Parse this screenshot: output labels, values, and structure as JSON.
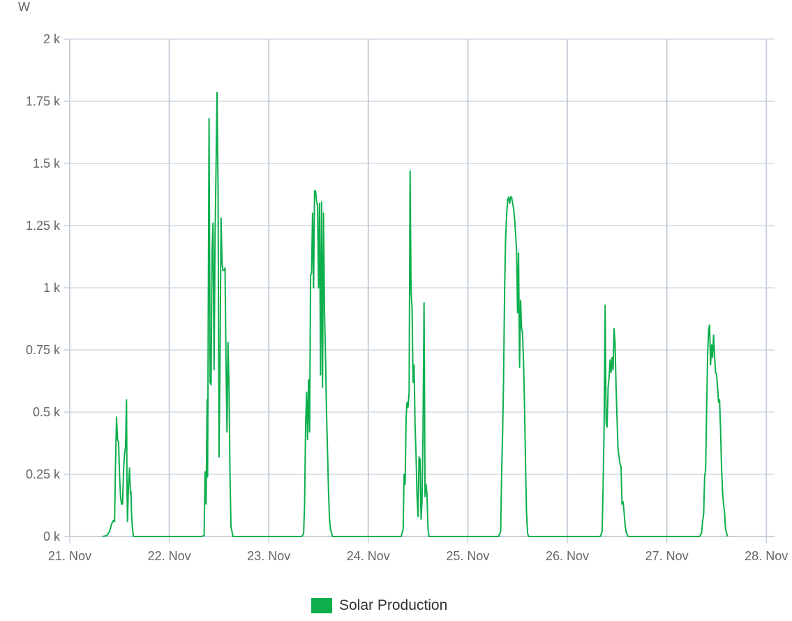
{
  "chart_data": {
    "type": "line",
    "ylabel": "W",
    "y_tick_labels": [
      "0 k",
      "0.25 k",
      "0.5 k",
      "0.75 k",
      "1 k",
      "1.25 k",
      "1.5 k",
      "1.75 k",
      "2 k"
    ],
    "y_ticks": [
      0,
      250,
      500,
      750,
      1000,
      1250,
      1500,
      1750,
      2000
    ],
    "ylim": [
      0,
      2000
    ],
    "x_tick_labels": [
      "21. Nov",
      "22. Nov",
      "23. Nov",
      "24. Nov",
      "25. Nov",
      "26. Nov",
      "27. Nov",
      "28. Nov"
    ],
    "x_ticks": [
      0,
      1,
      2,
      3,
      4,
      5,
      6,
      7
    ],
    "xlim": [
      0,
      7
    ],
    "x_unit": "days from 21. Nov",
    "grid": true,
    "legend_position": "bottom-center",
    "colors": {
      "series": "#0caf4c",
      "grid": "#dde3ea",
      "axis": "#c8d0da",
      "text": "#666666",
      "legend_text": "#333333"
    },
    "series": [
      {
        "name": "Solar Production",
        "color": "#0caf4c",
        "points": [
          [
            0.33,
            0
          ],
          [
            0.37,
            3
          ],
          [
            0.4,
            20
          ],
          [
            0.42,
            50
          ],
          [
            0.44,
            65
          ],
          [
            0.45,
            60
          ],
          [
            0.46,
            300
          ],
          [
            0.47,
            480
          ],
          [
            0.48,
            390
          ],
          [
            0.49,
            380
          ],
          [
            0.5,
            250
          ],
          [
            0.51,
            160
          ],
          [
            0.52,
            130
          ],
          [
            0.53,
            130
          ],
          [
            0.54,
            260
          ],
          [
            0.55,
            330
          ],
          [
            0.56,
            360
          ],
          [
            0.57,
            550
          ],
          [
            0.575,
            200
          ],
          [
            0.58,
            60
          ],
          [
            0.59,
            200
          ],
          [
            0.6,
            275
          ],
          [
            0.61,
            170
          ],
          [
            0.615,
            180
          ],
          [
            0.62,
            100
          ],
          [
            0.63,
            30
          ],
          [
            0.64,
            0
          ],
          [
            1.33,
            0
          ],
          [
            1.35,
            5
          ],
          [
            1.36,
            260
          ],
          [
            1.37,
            130
          ],
          [
            1.38,
            550
          ],
          [
            1.385,
            240
          ],
          [
            1.39,
            700
          ],
          [
            1.4,
            1680
          ],
          [
            1.41,
            620
          ],
          [
            1.42,
            610
          ],
          [
            1.43,
            1150
          ],
          [
            1.44,
            1260
          ],
          [
            1.45,
            670
          ],
          [
            1.46,
            1200
          ],
          [
            1.47,
            1480
          ],
          [
            1.48,
            1785
          ],
          [
            1.49,
            1400
          ],
          [
            1.5,
            320
          ],
          [
            1.51,
            700
          ],
          [
            1.52,
            1280
          ],
          [
            1.53,
            1100
          ],
          [
            1.54,
            1070
          ],
          [
            1.55,
            1070
          ],
          [
            1.56,
            1080
          ],
          [
            1.57,
            700
          ],
          [
            1.58,
            420
          ],
          [
            1.59,
            780
          ],
          [
            1.6,
            600
          ],
          [
            1.61,
            250
          ],
          [
            1.62,
            40
          ],
          [
            1.64,
            0
          ],
          [
            2.33,
            0
          ],
          [
            2.35,
            10
          ],
          [
            2.36,
            130
          ],
          [
            2.37,
            450
          ],
          [
            2.38,
            580
          ],
          [
            2.39,
            390
          ],
          [
            2.4,
            630
          ],
          [
            2.41,
            420
          ],
          [
            2.42,
            1050
          ],
          [
            2.43,
            1060
          ],
          [
            2.44,
            1300
          ],
          [
            2.45,
            1000
          ],
          [
            2.46,
            1390
          ],
          [
            2.47,
            1390
          ],
          [
            2.48,
            1350
          ],
          [
            2.49,
            1330
          ],
          [
            2.5,
            1000
          ],
          [
            2.51,
            1340
          ],
          [
            2.52,
            650
          ],
          [
            2.53,
            1345
          ],
          [
            2.54,
            600
          ],
          [
            2.55,
            1300
          ],
          [
            2.56,
            900
          ],
          [
            2.57,
            720
          ],
          [
            2.58,
            500
          ],
          [
            2.59,
            350
          ],
          [
            2.6,
            180
          ],
          [
            2.61,
            70
          ],
          [
            2.62,
            30
          ],
          [
            2.64,
            0
          ],
          [
            3.33,
            0
          ],
          [
            3.35,
            30
          ],
          [
            3.36,
            250
          ],
          [
            3.37,
            210
          ],
          [
            3.38,
            480
          ],
          [
            3.39,
            540
          ],
          [
            3.4,
            520
          ],
          [
            3.41,
            580
          ],
          [
            3.42,
            1470
          ],
          [
            3.43,
            980
          ],
          [
            3.44,
            920
          ],
          [
            3.45,
            620
          ],
          [
            3.46,
            690
          ],
          [
            3.47,
            450
          ],
          [
            3.48,
            330
          ],
          [
            3.49,
            160
          ],
          [
            3.5,
            80
          ],
          [
            3.51,
            320
          ],
          [
            3.52,
            310
          ],
          [
            3.53,
            70
          ],
          [
            3.54,
            140
          ],
          [
            3.55,
            420
          ],
          [
            3.56,
            940
          ],
          [
            3.57,
            160
          ],
          [
            3.58,
            210
          ],
          [
            3.59,
            170
          ],
          [
            3.6,
            30
          ],
          [
            3.61,
            0
          ],
          [
            4.31,
            0
          ],
          [
            4.33,
            20
          ],
          [
            4.34,
            250
          ],
          [
            4.35,
            420
          ],
          [
            4.36,
            640
          ],
          [
            4.37,
            1000
          ],
          [
            4.38,
            1200
          ],
          [
            4.39,
            1290
          ],
          [
            4.4,
            1350
          ],
          [
            4.41,
            1365
          ],
          [
            4.42,
            1340
          ],
          [
            4.43,
            1365
          ],
          [
            4.44,
            1365
          ],
          [
            4.45,
            1340
          ],
          [
            4.46,
            1320
          ],
          [
            4.47,
            1280
          ],
          [
            4.48,
            1220
          ],
          [
            4.49,
            1150
          ],
          [
            4.5,
            900
          ],
          [
            4.51,
            1140
          ],
          [
            4.52,
            680
          ],
          [
            4.53,
            950
          ],
          [
            4.54,
            840
          ],
          [
            4.55,
            820
          ],
          [
            4.56,
            700
          ],
          [
            4.57,
            520
          ],
          [
            4.58,
            300
          ],
          [
            4.59,
            100
          ],
          [
            4.6,
            15
          ],
          [
            4.61,
            0
          ],
          [
            5.33,
            0
          ],
          [
            5.35,
            20
          ],
          [
            5.36,
            200
          ],
          [
            5.37,
            450
          ],
          [
            5.38,
            930
          ],
          [
            5.39,
            460
          ],
          [
            5.4,
            440
          ],
          [
            5.41,
            600
          ],
          [
            5.42,
            640
          ],
          [
            5.43,
            710
          ],
          [
            5.44,
            660
          ],
          [
            5.45,
            720
          ],
          [
            5.46,
            670
          ],
          [
            5.47,
            835
          ],
          [
            5.48,
            780
          ],
          [
            5.49,
            600
          ],
          [
            5.5,
            470
          ],
          [
            5.51,
            350
          ],
          [
            5.52,
            320
          ],
          [
            5.53,
            290
          ],
          [
            5.54,
            280
          ],
          [
            5.55,
            130
          ],
          [
            5.56,
            140
          ],
          [
            5.57,
            100
          ],
          [
            5.58,
            50
          ],
          [
            5.59,
            20
          ],
          [
            5.61,
            0
          ],
          [
            6.33,
            0
          ],
          [
            6.35,
            15
          ],
          [
            6.36,
            60
          ],
          [
            6.37,
            90
          ],
          [
            6.38,
            240
          ],
          [
            6.39,
            270
          ],
          [
            6.4,
            500
          ],
          [
            6.41,
            730
          ],
          [
            6.42,
            830
          ],
          [
            6.43,
            850
          ],
          [
            6.44,
            690
          ],
          [
            6.45,
            770
          ],
          [
            6.46,
            720
          ],
          [
            6.47,
            810
          ],
          [
            6.48,
            730
          ],
          [
            6.49,
            660
          ],
          [
            6.5,
            650
          ],
          [
            6.51,
            600
          ],
          [
            6.52,
            540
          ],
          [
            6.53,
            550
          ],
          [
            6.54,
            430
          ],
          [
            6.55,
            280
          ],
          [
            6.56,
            180
          ],
          [
            6.57,
            130
          ],
          [
            6.58,
            100
          ],
          [
            6.59,
            30
          ],
          [
            6.61,
            0
          ]
        ]
      }
    ]
  }
}
